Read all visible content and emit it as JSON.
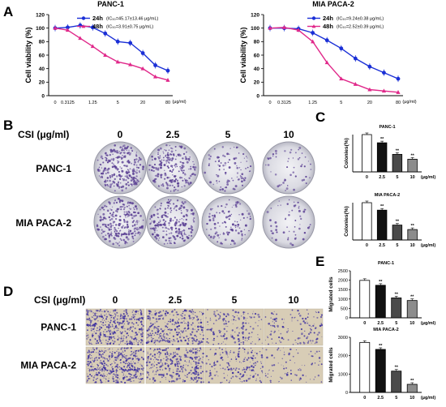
{
  "panels": {
    "a": "A",
    "b": "B",
    "c": "C",
    "d": "D",
    "e": "E"
  },
  "units": "(μg/ml)",
  "chart_data": [
    {
      "type": "line",
      "title": "PANC-1",
      "ylabel": "Cell viability (%)",
      "ylim": [
        0,
        120
      ],
      "yticks": [
        "0",
        "20",
        "40",
        "60",
        "80",
        "100",
        "120"
      ],
      "x_labels": [
        "0",
        "0.3125",
        "1.25",
        "5",
        "20",
        "80"
      ],
      "x_unit": "(μg/ml)",
      "x": [
        0,
        0.3125,
        0.625,
        1.25,
        2.5,
        5,
        10,
        20,
        40,
        80
      ],
      "series": [
        {
          "name": "24h",
          "ic50_label": "IC₅₀=45.17±13.46 μg/mL",
          "color": "#1a2fd6",
          "marker": "circle",
          "values": [
            100,
            101,
            104,
            101,
            92,
            80,
            78,
            63,
            45,
            37
          ]
        },
        {
          "name": "48h",
          "ic50_label": "IC₅₀=3.91±0.75 μg/mL",
          "color": "#e0288a",
          "marker": "triangle",
          "values": [
            100,
            97,
            85,
            73,
            60,
            50,
            46,
            40,
            28,
            23
          ]
        }
      ]
    },
    {
      "type": "line",
      "title": "MIA PACA-2",
      "ylabel": "Cell viability (%)",
      "ylim": [
        0,
        120
      ],
      "yticks": [
        "0",
        "20",
        "40",
        "60",
        "80",
        "100",
        "120"
      ],
      "x_labels": [
        "0",
        "0.3125",
        "1.25",
        "5",
        "20",
        "80"
      ],
      "x_unit": "(μg/ml)",
      "x": [
        0,
        0.3125,
        0.625,
        1.25,
        2.5,
        5,
        10,
        20,
        40,
        80
      ],
      "series": [
        {
          "name": "24h",
          "ic50_label": "IC₅₀=9.24±0.38 μg/mL",
          "color": "#1a2fd6",
          "marker": "circle",
          "values": [
            100,
            100,
            99,
            93,
            82,
            70,
            55,
            43,
            34,
            25
          ]
        },
        {
          "name": "48h",
          "ic50_label": "IC₅₀=2.52±0.39 μg/mL",
          "color": "#e0288a",
          "marker": "triangle",
          "values": [
            100,
            101,
            97,
            80,
            49,
            25,
            17,
            9,
            7,
            5
          ]
        }
      ]
    },
    {
      "type": "bar",
      "title": "PANC-1",
      "ylabel": "Colonies(%)",
      "categories": [
        "0",
        "2.5",
        "5",
        "10"
      ],
      "x_unit": "(μg/ml)",
      "ylim": [
        0,
        100
      ],
      "values": [
        100,
        78,
        47,
        34
      ],
      "significance": [
        "",
        "**",
        "**",
        "**"
      ]
    },
    {
      "type": "bar",
      "title": "MIA PACA-2",
      "ylabel": "Colonies(%)",
      "categories": [
        "0",
        "2.5",
        "5",
        "10"
      ],
      "x_unit": "(μg/ml)",
      "ylim": [
        0,
        100
      ],
      "values": [
        100,
        80,
        40,
        28
      ],
      "significance": [
        "",
        "**",
        "**",
        "**"
      ]
    },
    {
      "type": "bar",
      "title": "PANC-1",
      "ylabel": "Migrated cells",
      "categories": [
        "0",
        "2.5",
        "5",
        "10"
      ],
      "x_unit": "(μg/ml)",
      "ylim": [
        0,
        2500
      ],
      "yticks": [
        "0",
        "500",
        "1000",
        "1500",
        "2000",
        "2500"
      ],
      "values": [
        1990,
        1730,
        1060,
        920
      ],
      "significance": [
        "",
        "**",
        "**",
        "**"
      ]
    },
    {
      "type": "bar",
      "title": "MIA PACA-2",
      "ylabel": "Migrated cells",
      "categories": [
        "0",
        "2.5",
        "5",
        "10"
      ],
      "x_unit": "(μg/ml)",
      "ylim": [
        0,
        3000
      ],
      "yticks": [
        "0",
        "1000",
        "2000",
        "3000"
      ],
      "values": [
        2720,
        2340,
        1160,
        440
      ],
      "significance": [
        "",
        "**",
        "**",
        "**"
      ]
    }
  ],
  "panel_b": {
    "header": "CSI (μg/ml)",
    "columns": [
      "0",
      "2.5",
      "5",
      "10"
    ],
    "rows": [
      "PANC-1",
      "MIA PACA-2"
    ],
    "colony_density": [
      [
        1.0,
        0.8,
        0.35,
        0.2
      ],
      [
        1.0,
        0.8,
        0.4,
        0.22
      ]
    ],
    "stain_color": "#5a3f93"
  },
  "panel_d": {
    "header": "CSI (μg/ml)",
    "columns": [
      "0",
      "2.5",
      "5",
      "10"
    ],
    "rows": [
      "PANC-1",
      "MIA PACA-2"
    ],
    "cell_density": [
      [
        1.0,
        0.75,
        0.4,
        0.3
      ],
      [
        1.0,
        0.8,
        0.45,
        0.2
      ]
    ],
    "stain_color": "#3a2da0"
  }
}
